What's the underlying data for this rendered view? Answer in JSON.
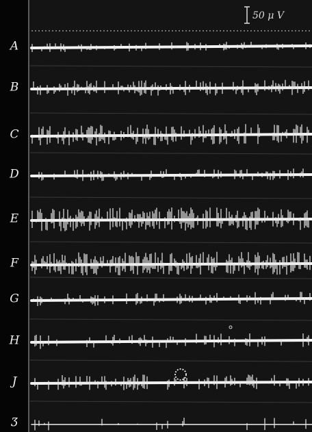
{
  "scale_bar": {
    "label": "50 μ V"
  },
  "rows": [
    {
      "label": "A"
    },
    {
      "label": "B"
    },
    {
      "label": "C"
    },
    {
      "label": "D"
    },
    {
      "label": "E"
    },
    {
      "label": "F"
    },
    {
      "label": "G"
    },
    {
      "label": "H"
    },
    {
      "label": "J"
    },
    {
      "label": "Ʒ"
    }
  ]
}
